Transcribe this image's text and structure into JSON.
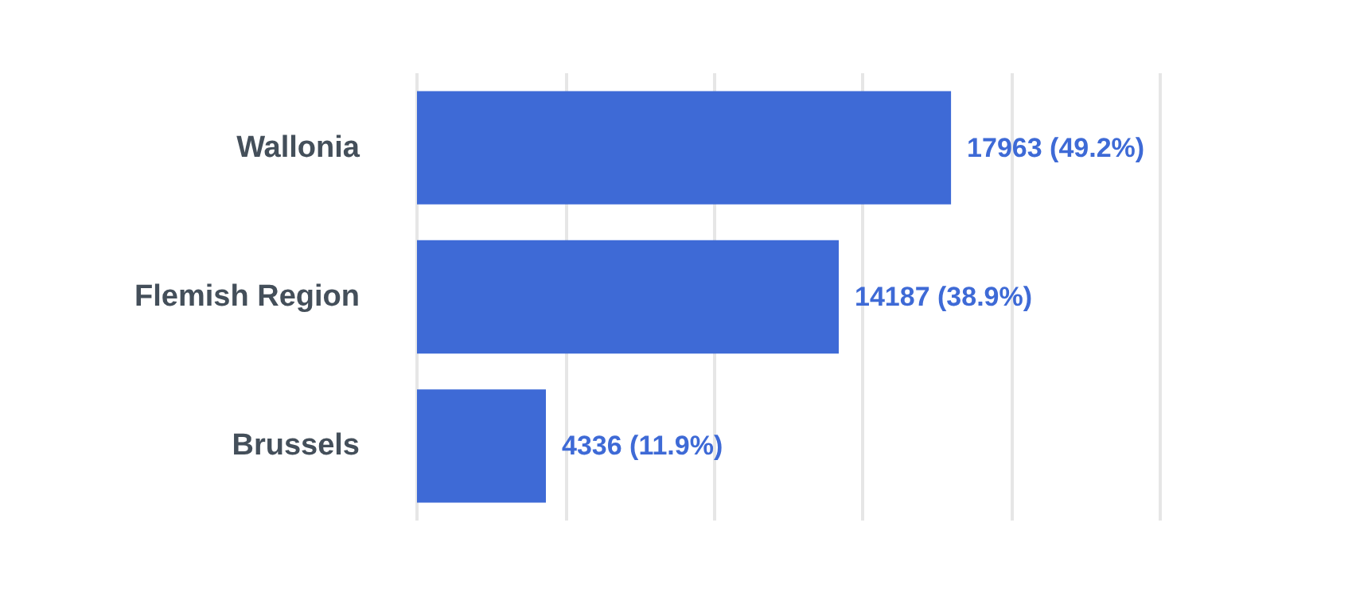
{
  "chart_data": {
    "type": "bar",
    "orientation": "horizontal",
    "categories": [
      "Wallonia",
      "Flemish Region",
      "Brussels"
    ],
    "values": [
      17963,
      14187,
      4336
    ],
    "value_labels": [
      "17963 (49.2%)",
      "14187 (38.9%)",
      "4336 (11.9%)"
    ],
    "color": "#3e6ad6",
    "xlim": [
      0,
      25000
    ],
    "xticks": [
      {
        "value": 0,
        "label": null
      },
      {
        "value": 5000,
        "label": null
      },
      {
        "value": 10000,
        "label": null
      },
      {
        "value": 15000,
        "label": null
      },
      {
        "value": 20000,
        "label": null
      },
      {
        "value": 25000,
        "label": null
      }
    ],
    "tick_labels": "y",
    "grid": "x"
  }
}
